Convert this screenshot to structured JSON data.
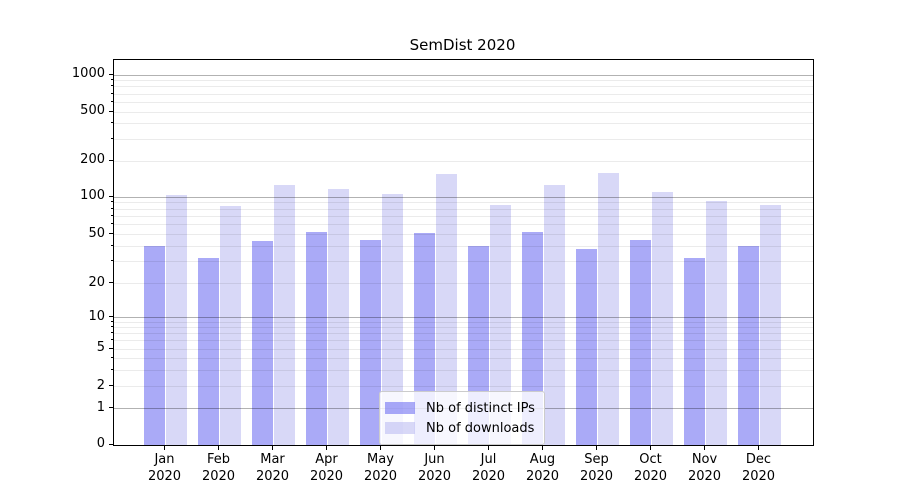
{
  "title": "SemDist 2020",
  "chart_data": {
    "type": "bar",
    "title": "SemDist 2020",
    "categories": [
      "Jan 2020",
      "Feb 2020",
      "Mar 2020",
      "Apr 2020",
      "May 2020",
      "Jun 2020",
      "Jul 2020",
      "Aug 2020",
      "Sep 2020",
      "Oct 2020",
      "Nov 2020",
      "Dec 2020"
    ],
    "series": [
      {
        "name": "Nb of distinct IPs",
        "color": "rgba(85,85,240,0.5)",
        "values": [
          40,
          32,
          44,
          52,
          45,
          51,
          40,
          52,
          38,
          45,
          32,
          40
        ]
      },
      {
        "name": "Nb of downloads",
        "color": "rgba(177,177,239,0.5)",
        "values": [
          103,
          84,
          127,
          116,
          106,
          155,
          87,
          125,
          160,
          110,
          93,
          86
        ]
      }
    ],
    "xlabel": "",
    "ylabel": "",
    "yscale": "symlog",
    "y_tick_labels": [
      0,
      1,
      2,
      5,
      10,
      20,
      50,
      100,
      200,
      500,
      1000
    ],
    "ylim": [
      0,
      1400
    ],
    "grid": "horizontal, minor log lines",
    "legend_position": "lower center inside axes",
    "colors": {
      "distinct_ips_apparent": "#aaaaf7",
      "downloads_apparent": "#d8d8f7",
      "major_grid": "#b3b3b3",
      "minor_grid": "#e8e8e8",
      "axes_frame": "#000000"
    }
  }
}
